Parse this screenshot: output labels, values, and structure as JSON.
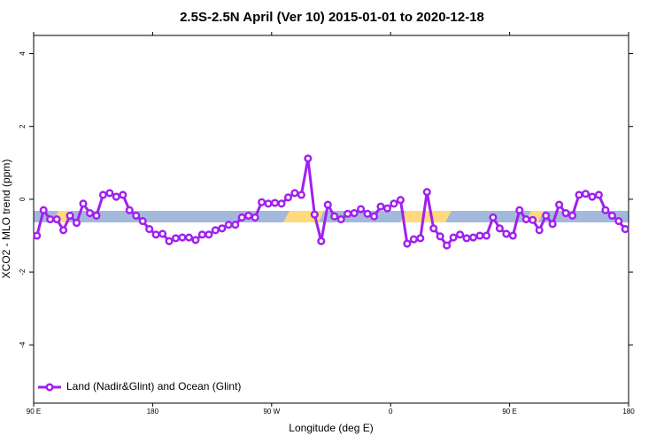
{
  "chart_data": {
    "type": "line",
    "title": "2.5S-2.5N April (Ver 10)   2015-01-01 to 2020-12-18",
    "x_label": "Longitude (deg E)",
    "y_label": "XCO2 - MLO trend (ppm)",
    "xlim": [
      90,
      540
    ],
    "xticks": [
      {
        "value": 90,
        "label": "90 E"
      },
      180,
      {
        "value": 270,
        "label": "90 W"
      },
      {
        "value": 360,
        "label": "0"
      },
      {
        "value": 450,
        "label": "90 E"
      },
      {
        "value": 540,
        "label": "180"
      }
    ],
    "ylim": [
      -5.6,
      4.5
    ],
    "yticks": [
      -4,
      -2,
      0,
      2,
      4
    ],
    "legend": "bottom-left",
    "x": [
      92.5,
      97.5,
      102.5,
      107.5,
      112.5,
      117.5,
      122.5,
      127.5,
      132.5,
      137.5,
      142.5,
      147.5,
      152.5,
      157.5,
      162.5,
      167.5,
      172.5,
      177.5,
      182.5,
      187.5,
      192.5,
      197.5,
      202.5,
      207.5,
      212.5,
      217.5,
      222.5,
      227.5,
      232.5,
      237.5,
      242.5,
      247.5,
      252.5,
      257.5,
      262.5,
      267.5,
      272.5,
      277.5,
      282.5,
      287.5,
      292.5,
      297.5,
      302.5,
      307.5,
      312.5,
      317.5,
      322.5,
      327.5,
      332.5,
      337.5,
      342.5,
      347.5,
      352.5,
      357.5,
      362.5,
      367.5,
      372.5,
      377.5,
      382.5,
      387.5,
      392.5,
      397.5,
      402.5,
      407.5,
      412.5,
      417.5,
      422.5,
      427.5,
      432.5,
      437.5,
      442.5,
      447.5,
      452.5,
      457.5,
      462.5,
      467.5,
      472.5,
      477.5,
      482.5,
      487.5,
      492.5,
      497.5,
      502.5,
      507.5,
      512.5,
      517.5,
      522.5,
      527.5,
      532.5,
      537.5
    ],
    "series": [
      {
        "name": "Land (Nadir&Glint) and Ocean (Glint)",
        "color": "#a020f0",
        "values": [
          -1.0,
          -0.3,
          -0.55,
          -0.55,
          -0.85,
          -0.45,
          -0.65,
          -0.12,
          -0.38,
          -0.45,
          0.12,
          0.17,
          0.07,
          0.12,
          -0.3,
          -0.45,
          -0.6,
          -0.82,
          -0.97,
          -0.95,
          -1.15,
          -1.07,
          -1.05,
          -1.05,
          -1.12,
          -0.97,
          -0.97,
          -0.85,
          -0.8,
          -0.7,
          -0.7,
          -0.5,
          -0.45,
          -0.5,
          -0.08,
          -0.12,
          -0.1,
          -0.12,
          0.05,
          0.17,
          0.12,
          1.12,
          -0.42,
          -1.15,
          -0.15,
          -0.47,
          -0.55,
          -0.4,
          -0.38,
          -0.27,
          -0.4,
          -0.47,
          -0.2,
          -0.25,
          -0.12,
          -0.02,
          -1.22,
          -1.1,
          -1.07,
          0.2,
          -0.8,
          -1.02,
          -1.27,
          -1.05,
          -0.97,
          -1.07,
          -1.05,
          -1.0,
          -1.0,
          -0.5,
          -0.8,
          -0.95,
          -1.0,
          -0.3,
          -0.55,
          -0.57,
          -0.85,
          -0.45,
          -0.68,
          -0.15,
          -0.38,
          -0.45,
          0.12,
          0.15,
          0.07,
          0.12,
          -0.3,
          -0.45,
          -0.6,
          -0.82
        ]
      }
    ]
  }
}
